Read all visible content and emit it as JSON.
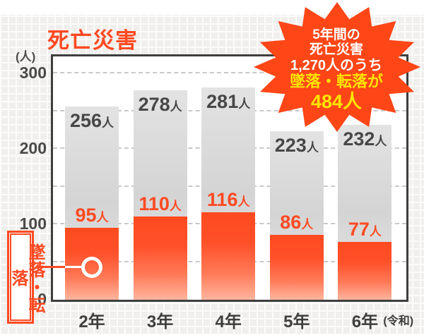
{
  "title": "死亡災害",
  "y_axis": {
    "unit_label": "(人)"
  },
  "x_axis": {
    "era_suffix": "(令和)"
  },
  "callout": {
    "label": "墜落・転落"
  },
  "badge": {
    "lines": [
      {
        "text": "5年間の",
        "color": "white"
      },
      {
        "text": "死亡災害",
        "color": "white"
      },
      {
        "text": "1,270人のうち",
        "color": "white"
      },
      {
        "text": "墜落・転落が",
        "color": "yellow"
      },
      {
        "text": "484人",
        "color": "yellow"
      }
    ]
  },
  "colors": {
    "accent": "#ff4a22",
    "starburst": "#ff4617",
    "highlight_yellow": "#ffe400",
    "total_bar_gray": "#d6d6d6",
    "dark_text": "#474747"
  },
  "chart_data": {
    "type": "bar",
    "title": "死亡災害",
    "ylabel": "(人)",
    "categories": [
      "2年",
      "3年",
      "4年",
      "5年",
      "6年"
    ],
    "series": [
      {
        "name": "死亡災害",
        "values": [
          256,
          278,
          281,
          223,
          232
        ],
        "unit": "人"
      },
      {
        "name": "墜落・転落",
        "values": [
          95,
          110,
          116,
          86,
          77
        ],
        "unit": "人"
      }
    ],
    "ylim": [
      0,
      300
    ],
    "yticks": [
      0,
      100,
      200,
      300
    ],
    "gridline_interval": 50,
    "grid": "dashed-horizontal",
    "legend_position": "none"
  }
}
